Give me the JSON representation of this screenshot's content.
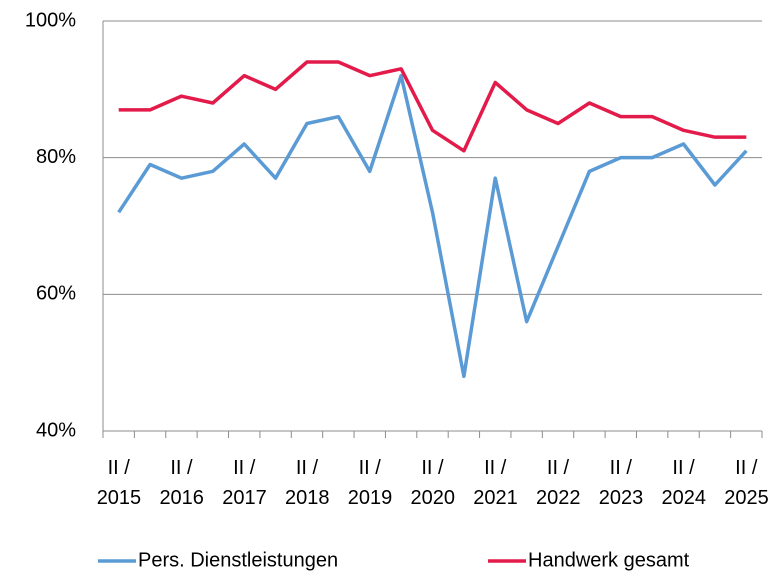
{
  "chart_data": {
    "type": "line",
    "categories": [
      "II / 2015",
      null,
      "II / 2016",
      null,
      "II / 2017",
      null,
      "II / 2018",
      null,
      "II / 2019",
      null,
      "II / 2020",
      null,
      "II / 2021",
      null,
      "II / 2022",
      null,
      "II / 2023",
      null,
      "II / 2024",
      null,
      "II / 2025"
    ],
    "series": [
      {
        "name": "Pers. Dienstleistungen",
        "color": "#5b9bd5",
        "values": [
          72,
          79,
          77,
          78,
          82,
          77,
          85,
          86,
          78,
          92,
          72,
          48,
          77,
          56,
          67,
          78,
          80,
          80,
          82,
          76,
          81
        ]
      },
      {
        "name": "Handwerk gesamt",
        "color": "#e31b4b",
        "values": [
          87,
          87,
          89,
          88,
          92,
          90,
          94,
          94,
          92,
          93,
          84,
          81,
          91,
          87,
          85,
          88,
          86,
          86,
          84,
          83,
          83
        ]
      }
    ],
    "ylim": [
      40,
      100
    ],
    "yticks": [
      {
        "value": 40,
        "label": "40%"
      },
      {
        "value": 60,
        "label": "60%"
      },
      {
        "value": 80,
        "label": "80%"
      },
      {
        "value": 100,
        "label": "100%"
      }
    ],
    "grid": true,
    "legend": "bottom"
  }
}
